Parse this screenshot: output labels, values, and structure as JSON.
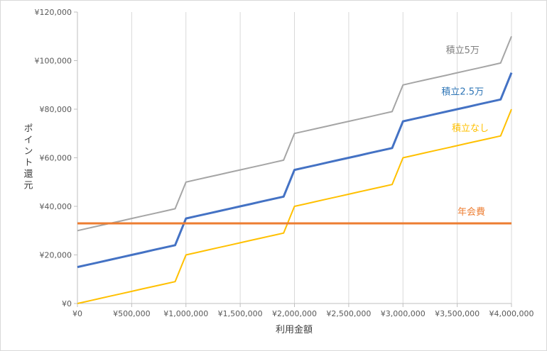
{
  "chart_data": {
    "type": "line",
    "title": "",
    "xlabel": "利用金額",
    "ylabel": "ポイント還元",
    "xlim": [
      0,
      4000000
    ],
    "ylim": [
      0,
      120000
    ],
    "grid": {
      "vertical": true,
      "horizontal": false
    },
    "x_ticks": [
      0,
      500000,
      1000000,
      1500000,
      2000000,
      2500000,
      3000000,
      3500000,
      4000000
    ],
    "x_tick_labels": [
      "¥0",
      "¥500,000",
      "¥1,000,000",
      "¥1,500,000",
      "¥2,000,000",
      "¥2,500,000",
      "¥3,000,000",
      "¥3,500,000",
      "¥4,000,000"
    ],
    "y_ticks": [
      0,
      20000,
      40000,
      60000,
      80000,
      100000,
      120000
    ],
    "y_tick_labels": [
      "¥0",
      "¥20,000",
      "¥40,000",
      "¥60,000",
      "¥80,000",
      "¥100,000",
      "¥120,000"
    ],
    "series": [
      {
        "name": "積立5万",
        "color": "#a5a5a5",
        "label_color": "#7f7f7f",
        "x": [
          0,
          100000,
          200000,
          300000,
          400000,
          500000,
          600000,
          700000,
          800000,
          900000,
          1000000,
          1100000,
          1200000,
          1300000,
          1400000,
          1500000,
          1600000,
          1700000,
          1800000,
          1900000,
          2000000,
          2100000,
          2200000,
          2300000,
          2400000,
          2500000,
          2600000,
          2700000,
          2800000,
          2900000,
          3000000,
          3100000,
          3200000,
          3300000,
          3400000,
          3500000,
          3600000,
          3700000,
          3800000,
          3900000,
          4000000
        ],
        "y": [
          30000,
          31000,
          32000,
          33000,
          34000,
          35000,
          36000,
          37000,
          38000,
          39000,
          50000,
          51000,
          52000,
          53000,
          54000,
          55000,
          56000,
          57000,
          58000,
          59000,
          70000,
          71000,
          72000,
          73000,
          74000,
          75000,
          76000,
          77000,
          78000,
          79000,
          90000,
          91000,
          92000,
          93000,
          94000,
          95000,
          96000,
          97000,
          98000,
          99000,
          110000
        ]
      },
      {
        "name": "積立2.5万",
        "color": "#4472c4",
        "label_color": "#2e75b6",
        "x": [
          0,
          100000,
          200000,
          300000,
          400000,
          500000,
          600000,
          700000,
          800000,
          900000,
          1000000,
          1100000,
          1200000,
          1300000,
          1400000,
          1500000,
          1600000,
          1700000,
          1800000,
          1900000,
          2000000,
          2100000,
          2200000,
          2300000,
          2400000,
          2500000,
          2600000,
          2700000,
          2800000,
          2900000,
          3000000,
          3100000,
          3200000,
          3300000,
          3400000,
          3500000,
          3600000,
          3700000,
          3800000,
          3900000,
          4000000
        ],
        "y": [
          15000,
          16000,
          17000,
          18000,
          19000,
          20000,
          21000,
          22000,
          23000,
          24000,
          35000,
          36000,
          37000,
          38000,
          39000,
          40000,
          41000,
          42000,
          43000,
          44000,
          55000,
          56000,
          57000,
          58000,
          59000,
          60000,
          61000,
          62000,
          63000,
          64000,
          75000,
          76000,
          77000,
          78000,
          79000,
          80000,
          81000,
          82000,
          83000,
          84000,
          95000
        ]
      },
      {
        "name": "積立なし",
        "color": "#ffc000",
        "label_color": "#ffc000",
        "x": [
          0,
          100000,
          200000,
          300000,
          400000,
          500000,
          600000,
          700000,
          800000,
          900000,
          1000000,
          1100000,
          1200000,
          1300000,
          1400000,
          1500000,
          1600000,
          1700000,
          1800000,
          1900000,
          2000000,
          2100000,
          2200000,
          2300000,
          2400000,
          2500000,
          2600000,
          2700000,
          2800000,
          2900000,
          3000000,
          3100000,
          3200000,
          3300000,
          3400000,
          3500000,
          3600000,
          3700000,
          3800000,
          3900000,
          4000000
        ],
        "y": [
          0,
          1000,
          2000,
          3000,
          4000,
          5000,
          6000,
          7000,
          8000,
          9000,
          20000,
          21000,
          22000,
          23000,
          24000,
          25000,
          26000,
          27000,
          28000,
          29000,
          40000,
          41000,
          42000,
          43000,
          44000,
          45000,
          46000,
          47000,
          48000,
          49000,
          60000,
          61000,
          62000,
          63000,
          64000,
          65000,
          66000,
          67000,
          68000,
          69000,
          80000
        ]
      },
      {
        "name": "年会費",
        "color": "#ed7d31",
        "label_color": "#ed7d31",
        "x": [
          0,
          4000000
        ],
        "y": [
          33000,
          33000
        ]
      }
    ]
  }
}
